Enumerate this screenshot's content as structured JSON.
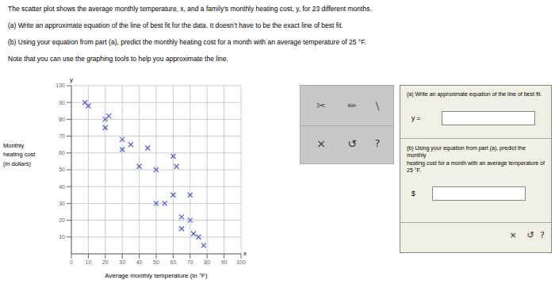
{
  "chart_data": {
    "type": "scatter",
    "title": "The scatter plot shows the average monthly temperature, x, and a family’s monthly heating cost, y, for 23 different months.",
    "annotations": [
      "(a) Write an approximate equation of the line of best fit for the data. It doesn’t have to be the exact line of best fit.",
      "(b) Using your equation from part (a), predict the monthly heating cost for a month with an average temperature of 25 °F.",
      "Note that you can use the graphing tools to help you approximate the line.",
      "y",
      "x",
      "✂",
      "✏",
      "\\",
      "×",
      "↺",
      "?",
      "(a) Write an approximate equation of the line of best fit.",
      "y = ",
      "(b) Using your equation from part (a), predict the monthly\nheating cost for a month with an average temperature of\n25 °F.",
      "$ ",
      "×",
      "↺",
      "?"
    ],
    "xlabel": "Average monthly temperature (in °F)",
    "ylabel": "Monthly\nheating cost\n(in dollars)",
    "x": [
      8,
      10,
      20,
      22,
      20,
      30,
      30,
      35,
      40,
      45,
      50,
      50,
      55,
      60,
      60,
      62,
      65,
      65,
      70,
      70,
      72,
      75,
      78
    ],
    "values": [
      90,
      88,
      75,
      82,
      80,
      62,
      68,
      65,
      52,
      63,
      50,
      30,
      30,
      58,
      35,
      52,
      22,
      15,
      35,
      20,
      12,
      10,
      5
    ],
    "color": "#5566cc",
    "marker": "x",
    "xlim": [
      0,
      100
    ],
    "ylim": [
      0,
      100
    ],
    "xticks": [
      0,
      10,
      20,
      30,
      40,
      50,
      60,
      70,
      80,
      90,
      100
    ],
    "yticks": [
      10,
      20,
      30,
      40,
      50,
      60,
      70,
      80,
      90,
      100
    ],
    "grid": true
  }
}
